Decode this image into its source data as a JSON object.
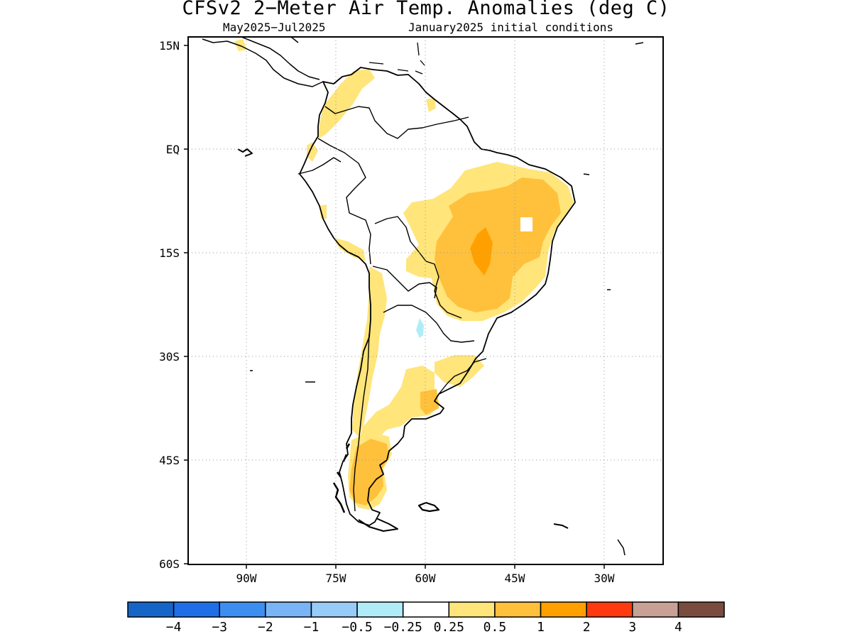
{
  "title": "CFSv2 2−Meter Air Temp. Anomalies (deg C)",
  "subtitle_left": "May2025−Jul2025",
  "subtitle_right": "January2025 initial conditions",
  "map": {
    "region": "South America",
    "lon_range": [
      -97,
      -24
    ],
    "lat_range": [
      -60,
      15
    ],
    "grid": "dotted",
    "lat_ticks": [
      {
        "value": 15,
        "label": "15N"
      },
      {
        "value": 0,
        "label": "EQ"
      },
      {
        "value": -15,
        "label": "15S"
      },
      {
        "value": -30,
        "label": "30S"
      },
      {
        "value": -45,
        "label": "45S"
      },
      {
        "value": -60,
        "label": "60S"
      }
    ],
    "lon_ticks": [
      {
        "value": -90,
        "label": "90W"
      },
      {
        "value": -75,
        "label": "75W"
      },
      {
        "value": -60,
        "label": "60W"
      },
      {
        "value": -45,
        "label": "45W"
      },
      {
        "value": -30,
        "label": "30W"
      }
    ]
  },
  "colorbar": {
    "colors": [
      "#1565c8",
      "#1f6ee8",
      "#3c8ff0",
      "#79b5f6",
      "#98ccf8",
      "#b0ecf8",
      "#ffffff",
      "#ffe57a",
      "#ffc03c",
      "#ffa000",
      "#ff3a10",
      "#c8a096",
      "#7a4c40"
    ],
    "labels": [
      "−4",
      "−3",
      "−2",
      "−1",
      "−0.5",
      "−0.25",
      "0.25",
      "0.5",
      "1",
      "2",
      "3",
      "4"
    ]
  },
  "colors": {
    "land_outline": "#000000",
    "anom_0_25_to_0_5": "#ffe57a",
    "anom_0_5_to_1": "#ffc03c",
    "anom_1_to_2": "#ffa000",
    "anom_neg_0_25_to_neg_0_5": "#b0ecf8"
  }
}
